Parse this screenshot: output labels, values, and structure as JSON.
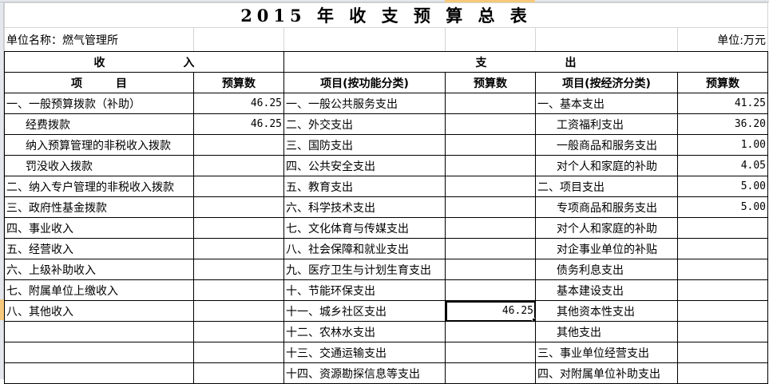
{
  "title": "2015 年 收 支 预 算 总 表",
  "unit_name": "单位名称：燃气管理所",
  "unit": "单位:万元",
  "income_header": "收　　　　　　　入",
  "expense_header": "支　　　　　　　出",
  "columns": [
    "项　　　目",
    "预算数",
    "项目(按功能分类)",
    "预算数",
    "项目(按经济分类)",
    "预算数"
  ],
  "rows": [
    [
      "一、一般预算拨款（补助）",
      "46.25",
      "一、一般公共服务支出",
      "",
      "一、基本支出",
      "41.25"
    ],
    [
      "经费拨款",
      "46.25",
      "二、外交支出",
      "",
      "工资福利支出",
      "36.20"
    ],
    [
      "纳入预算管理的非税收入拨款",
      "",
      "三、国防支出",
      "",
      "一般商品和服务支出",
      "1.00"
    ],
    [
      "罚没收入拨款",
      "",
      "四、公共安全支出",
      "",
      "对个人和家庭的补助",
      "4.05"
    ],
    [
      "二、纳入专户管理的非税收入拨款",
      "",
      "五、教育支出",
      "",
      "二、项目支出",
      "5.00"
    ],
    [
      "三、政府性基金拨款",
      "",
      "六、科学技术支出",
      "",
      "专项商品和服务支出",
      "5.00"
    ],
    [
      "四、事业收入",
      "",
      "七、文化体育与传媒支出",
      "",
      "对个人和家庭的补助",
      ""
    ],
    [
      "五、经营收入",
      "",
      "八、社会保障和就业支出",
      "",
      "对企事业单位的补贴",
      ""
    ],
    [
      "六、上级补助收入",
      "",
      "九、医疗卫生与计划生育支出",
      "",
      "债务利息支出",
      ""
    ],
    [
      "七、附属单位上缴收入",
      "",
      "十、节能环保支出",
      "",
      "基本建设支出",
      ""
    ],
    [
      "八、其他收入",
      "",
      "十一、城乡社区支出",
      "46.25",
      "其他资本性支出",
      ""
    ],
    [
      "",
      "",
      "十二、农林水支出",
      "",
      "其他支出",
      ""
    ],
    [
      "",
      "",
      "十三、交通运输支出",
      "",
      "三、事业单位经营支出",
      ""
    ],
    [
      "",
      "",
      "十四、资源勘探信息等支出",
      "",
      "四、对附属单位补助支出",
      ""
    ]
  ],
  "indent_col0": [
    1,
    2,
    3
  ],
  "indent_col4": [
    1,
    2,
    3,
    5,
    6,
    7,
    8,
    9,
    10,
    11
  ],
  "selected_cell": {
    "row": 10,
    "col": 3
  }
}
